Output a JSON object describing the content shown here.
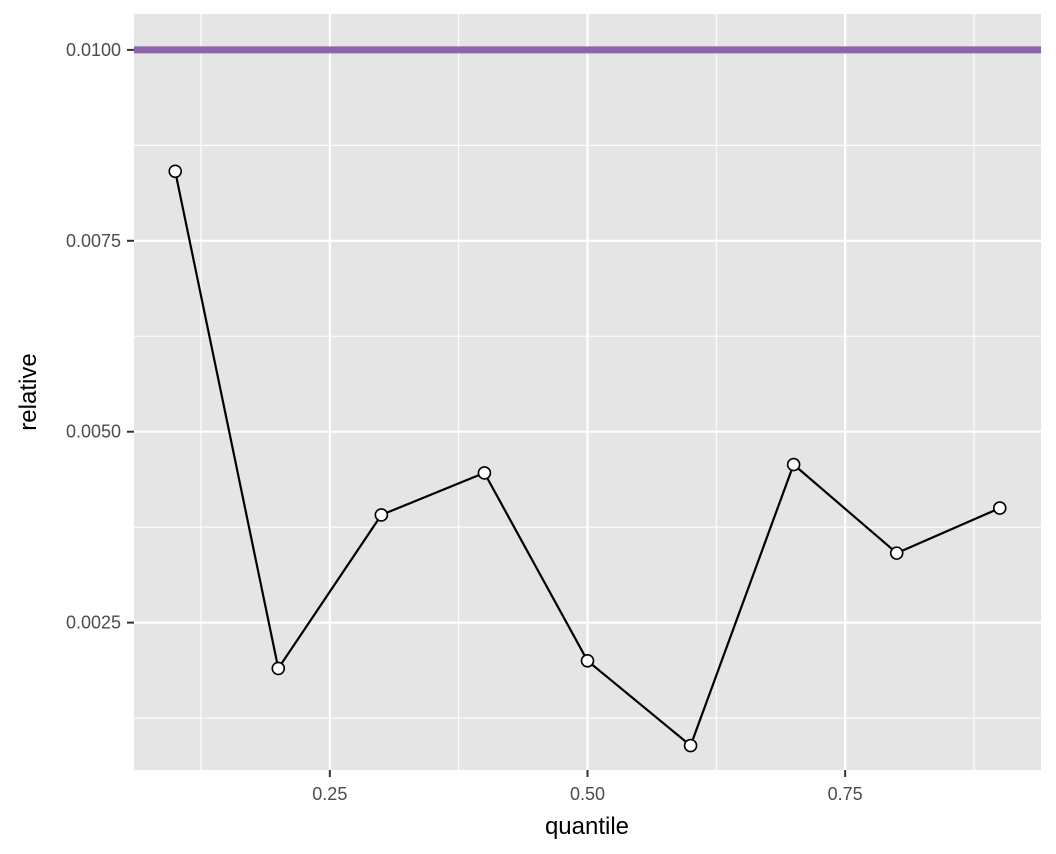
{
  "chart_data": {
    "type": "line",
    "title": "",
    "xlabel": "quantile",
    "ylabel": "relative",
    "xlim": [
      0.06,
      0.94
    ],
    "ylim": [
      0.00057,
      0.01047
    ],
    "x_ticks": [
      0.25,
      0.5,
      0.75
    ],
    "x_tick_labels": [
      "0.25",
      "0.50",
      "0.75"
    ],
    "y_ticks": [
      0.0025,
      0.005,
      0.0075,
      0.01
    ],
    "y_tick_labels": [
      "0.0025",
      "0.0050",
      "0.0075",
      "0.0100"
    ],
    "grid": true,
    "panel_background": "#e5e5e5",
    "grid_color": "#ffffff",
    "series": [
      {
        "x": [
          0.1,
          0.2,
          0.3,
          0.4,
          0.5,
          0.6,
          0.7,
          0.8,
          0.9
        ],
        "y": [
          0.00841,
          0.0019,
          0.00391,
          0.00446,
          0.002,
          0.00089,
          0.00457,
          0.00341,
          0.004
        ],
        "color": "#000000",
        "marker": "open-circle"
      }
    ],
    "reference_lines": [
      {
        "orientation": "horizontal",
        "y": 0.01,
        "color": "#8c66ab"
      }
    ]
  }
}
